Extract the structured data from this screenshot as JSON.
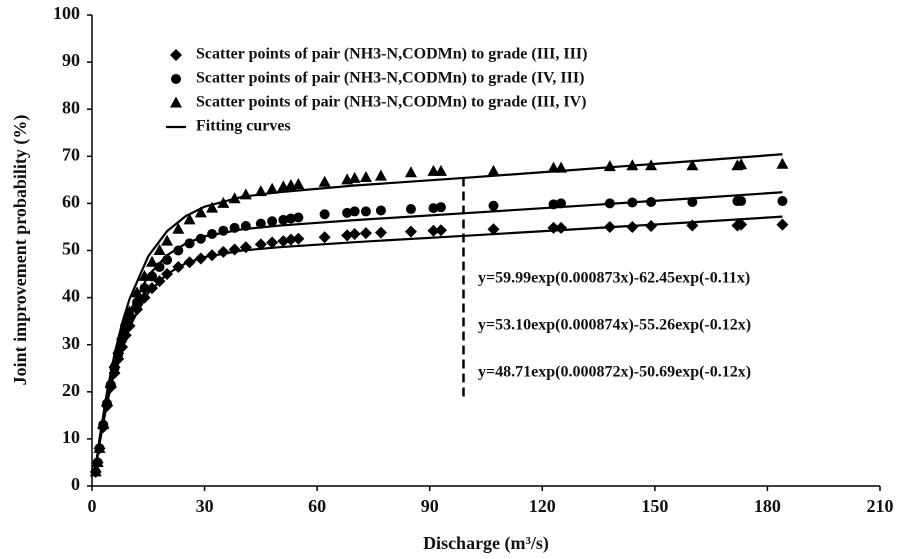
{
  "chart_data": {
    "type": "scatter",
    "xlabel": "Discharge (m³/s)",
    "ylabel": "Joint improvement probability  (%)",
    "xlim": [
      0,
      210
    ],
    "xticks": [
      0,
      30,
      60,
      90,
      120,
      150,
      180,
      210
    ],
    "ylim": [
      0,
      100
    ],
    "yticks": [
      0,
      10,
      20,
      30,
      40,
      50,
      60,
      70,
      80,
      90,
      100
    ],
    "grid": false,
    "legend": "upper left",
    "series": [
      {
        "name": "Scatter points of pair (NH3-N,CODMn) to grade (III, III)",
        "marker": "diamond",
        "color": "#000000",
        "x": [
          1,
          1.5,
          2,
          3,
          4,
          5,
          6,
          7,
          8,
          9,
          10,
          12,
          14,
          16,
          18,
          20,
          23,
          26,
          29,
          32,
          35,
          38,
          41,
          45,
          48,
          51,
          53,
          55,
          62,
          68,
          70,
          73,
          77,
          85,
          91,
          93,
          107,
          123,
          125,
          138,
          144,
          149,
          160,
          172,
          173,
          184
        ],
        "values": [
          3,
          5,
          8,
          12.5,
          17,
          21,
          24,
          27,
          29.5,
          32,
          34,
          37.5,
          40,
          42,
          43.5,
          45,
          46.5,
          47.5,
          48.3,
          49,
          49.7,
          50.2,
          50.7,
          51.3,
          51.7,
          52,
          52.3,
          52.5,
          52.8,
          53.2,
          53.5,
          53.7,
          53.8,
          54,
          54.2,
          54.3,
          54.5,
          54.8,
          54.8,
          55,
          55,
          55.2,
          55.3,
          55.3,
          55.5,
          55.5
        ]
      },
      {
        "name": "Scatter points of pair (NH3-N,CODMn) to grade (IV, III)",
        "marker": "circle",
        "color": "#000000",
        "x": [
          1,
          1.5,
          2,
          3,
          4,
          5,
          6,
          7,
          8,
          9,
          10,
          12,
          14,
          16,
          18,
          20,
          23,
          26,
          29,
          32,
          35,
          38,
          41,
          45,
          48,
          51,
          53,
          55,
          62,
          68,
          70,
          73,
          77,
          85,
          91,
          93,
          107,
          123,
          125,
          138,
          144,
          149,
          160,
          172,
          173,
          184
        ],
        "values": [
          3,
          5,
          8,
          13,
          17.5,
          21.5,
          25,
          28,
          31,
          33.5,
          35.5,
          39,
          42,
          44.5,
          46.5,
          48,
          50,
          51.5,
          52.5,
          53.5,
          54.2,
          54.8,
          55.2,
          55.7,
          56.2,
          56.5,
          56.8,
          57,
          57.7,
          58,
          58.3,
          58.3,
          58.5,
          58.8,
          59,
          59.2,
          59.5,
          59.8,
          60,
          60,
          60.2,
          60.3,
          60.3,
          60.5,
          60.5,
          60.5
        ]
      },
      {
        "name": "Scatter points of pair (NH3-N,CODMn) to grade (III, IV)",
        "marker": "triangle",
        "color": "#000000",
        "x": [
          1,
          1.5,
          2,
          3,
          4,
          5,
          6,
          7,
          8,
          9,
          10,
          12,
          14,
          16,
          18,
          20,
          23,
          26,
          29,
          32,
          35,
          38,
          41,
          45,
          48,
          51,
          53,
          55,
          62,
          68,
          70,
          73,
          77,
          85,
          91,
          93,
          107,
          123,
          125,
          138,
          144,
          149,
          160,
          172,
          173,
          184
        ],
        "values": [
          3,
          5,
          8,
          13,
          18,
          22,
          26,
          29,
          32,
          35,
          37,
          41,
          44.5,
          47.5,
          50,
          52,
          54.5,
          56.5,
          58,
          59,
          60,
          61,
          61.8,
          62.5,
          63,
          63.5,
          63.8,
          64,
          64.5,
          65,
          65.3,
          65.5,
          65.8,
          66.5,
          66.8,
          66.8,
          66.8,
          67.5,
          67.5,
          67.8,
          68,
          68,
          68,
          68,
          68.2,
          68.3
        ]
      }
    ],
    "fitting_curves": [
      {
        "name": "Fitting curves",
        "color": "#000000",
        "x": [
          1,
          2,
          4,
          6,
          8,
          10,
          15,
          20,
          25,
          30,
          40,
          50,
          70,
          100,
          130,
          160,
          184
        ],
        "values": [
          4.1,
          10.0,
          20.0,
          28.0,
          34.5,
          39.7,
          48.8,
          54.1,
          57.3,
          59.3,
          61.4,
          62.4,
          63.8,
          65.46,
          67.2,
          68.98,
          70.44
        ]
      },
      {
        "color": "#000000",
        "x": [
          1,
          2,
          4,
          6,
          8,
          10,
          15,
          20,
          25,
          30,
          40,
          50,
          70,
          100,
          130,
          160,
          184
        ],
        "values": [
          4.1,
          9.7,
          19.1,
          26.5,
          32.3,
          36.9,
          44.7,
          49.0,
          51.5,
          53.0,
          54.5,
          55.3,
          56.45,
          57.95,
          59.49,
          61.07,
          62.37
        ]
      },
      {
        "color": "#000000",
        "x": [
          1,
          2,
          4,
          6,
          8,
          10,
          15,
          20,
          25,
          30,
          40,
          50,
          70,
          100,
          130,
          160,
          184
        ],
        "values": [
          3.8,
          8.9,
          17.5,
          24.3,
          29.6,
          33.9,
          41.0,
          45.0,
          47.3,
          48.6,
          50.0,
          50.7,
          51.77,
          53.15,
          54.56,
          56.0,
          57.19
        ]
      }
    ],
    "dashed_line": {
      "x": 99,
      "y": [
        19,
        66
      ]
    },
    "annotations": [
      "y=59.99exp(0.000873x)-62.45exp(-0.11x)",
      "y=53.10exp(0.000874x)-55.26exp(-0.12x)",
      "y=48.71exp(0.000872x)-50.69exp(-0.12x)"
    ]
  }
}
